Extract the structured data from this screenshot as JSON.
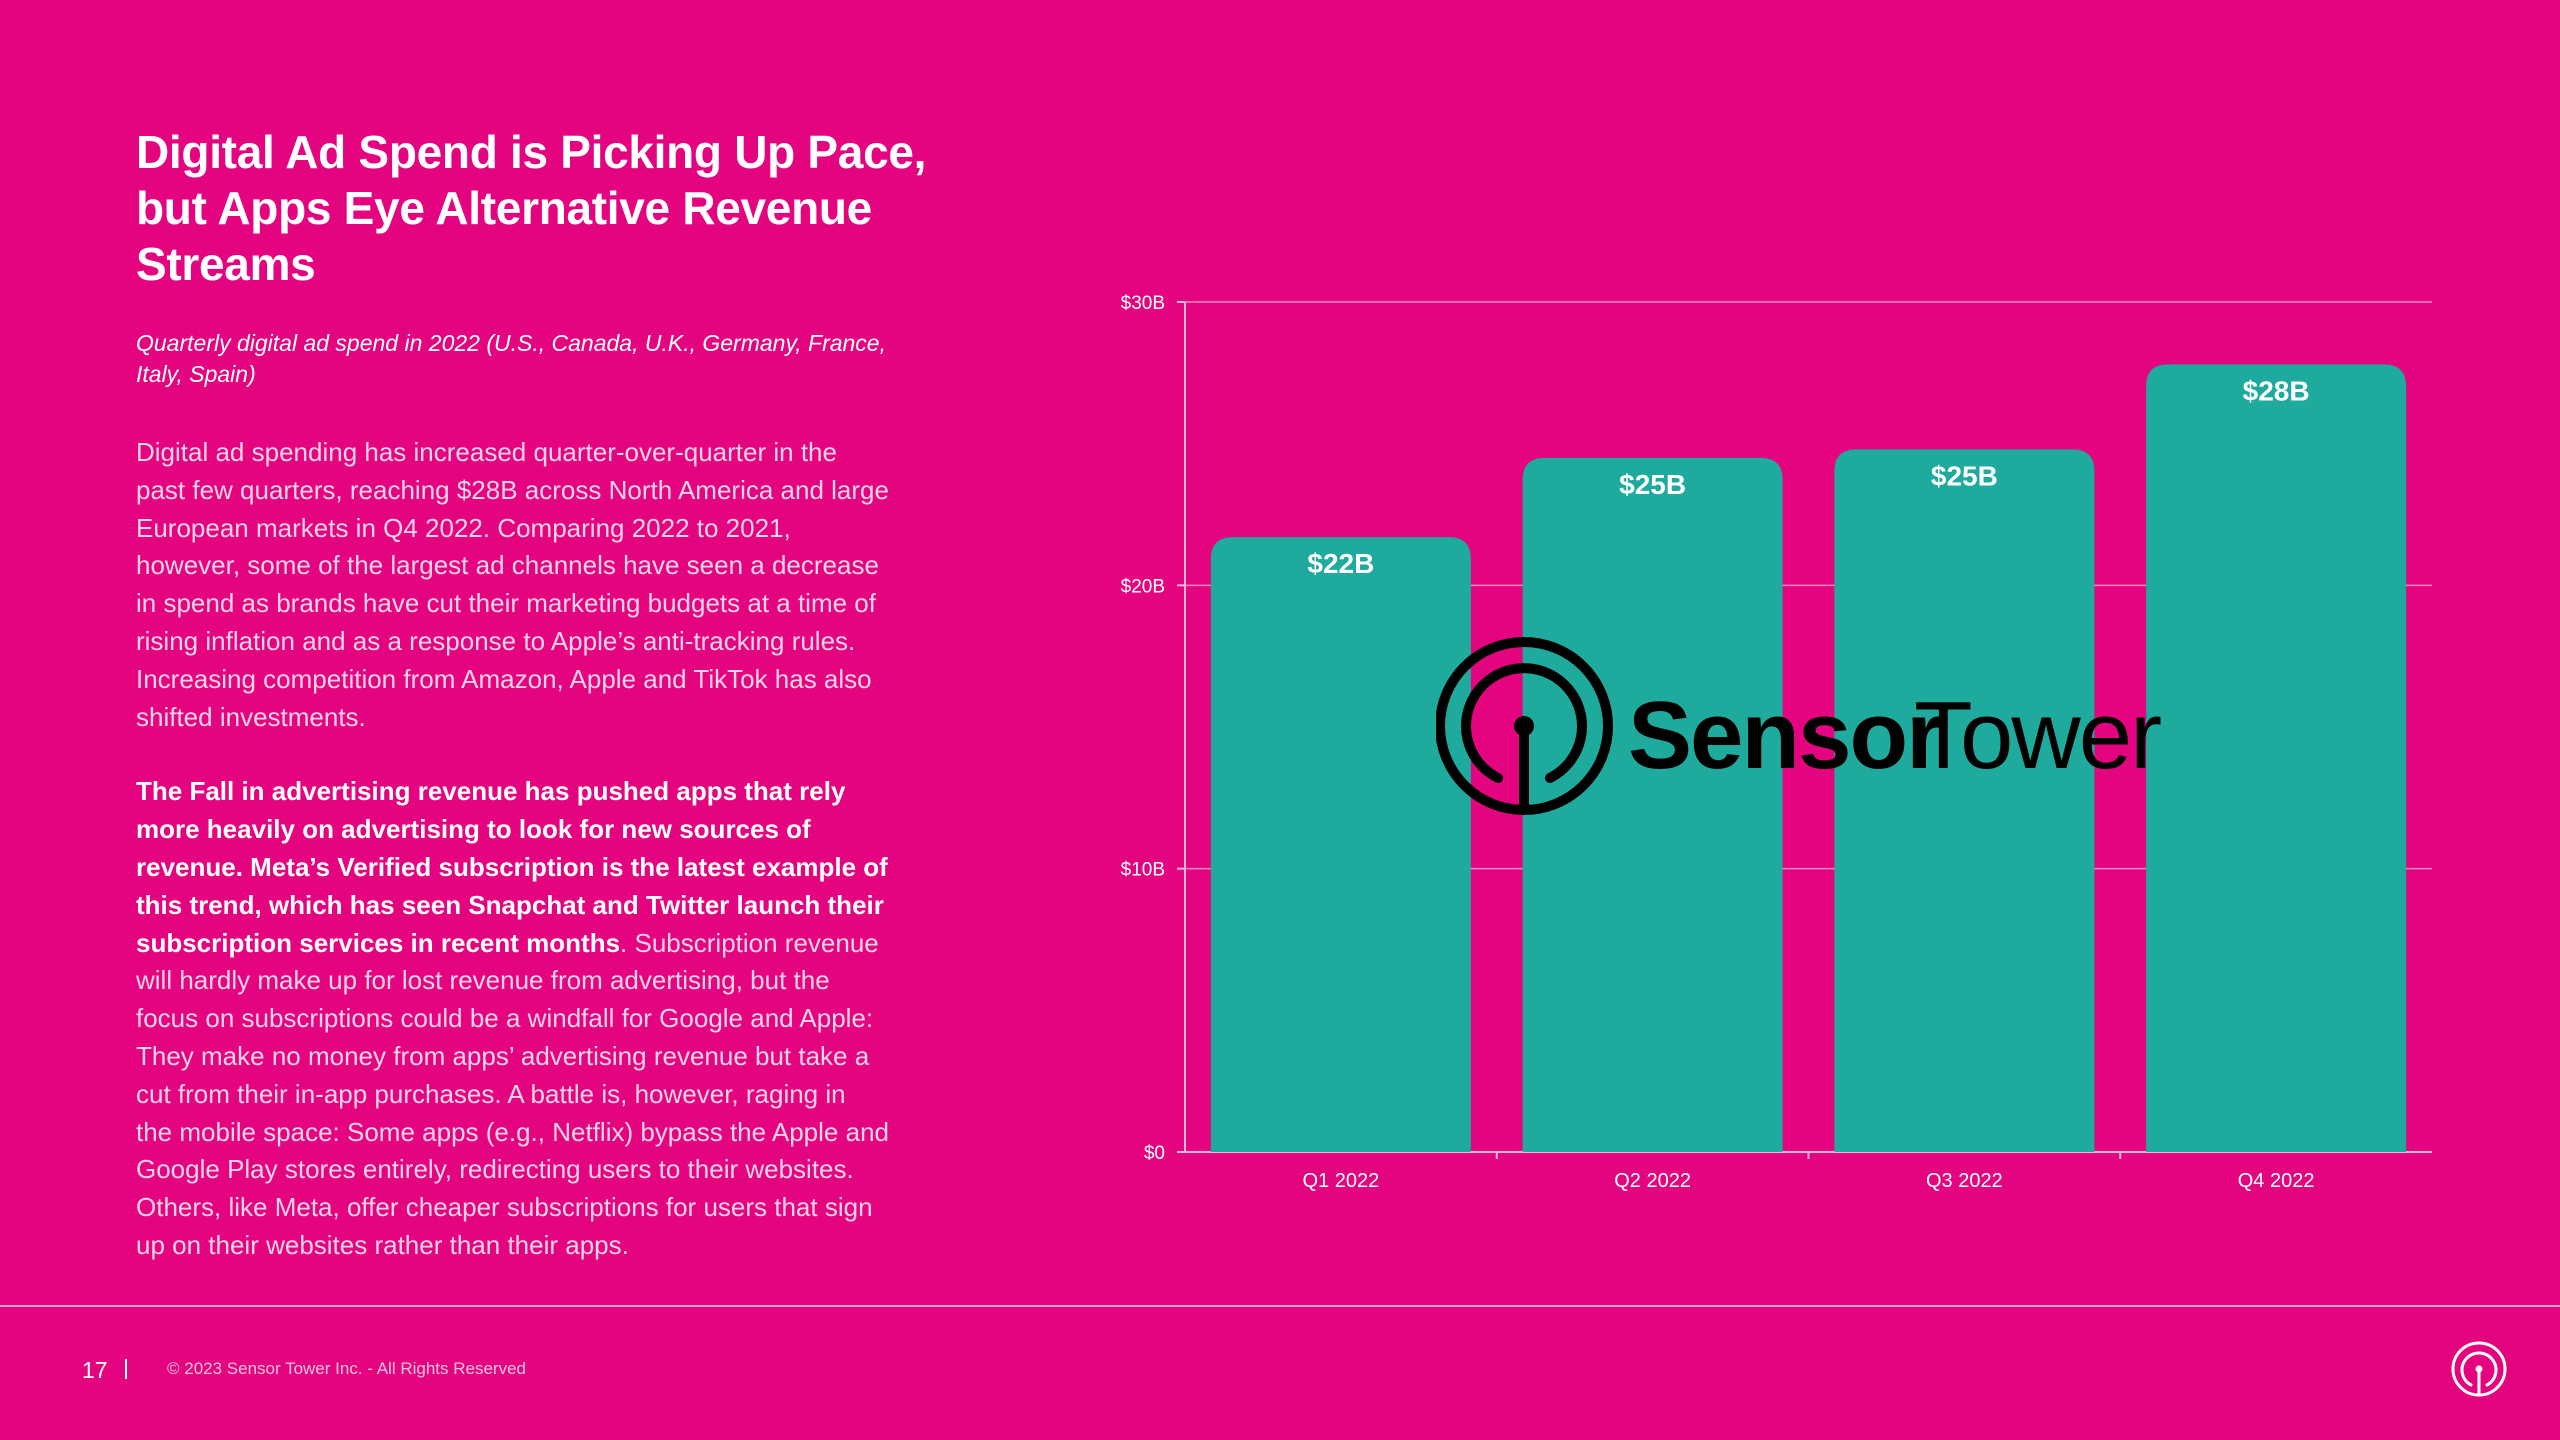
{
  "slide": {
    "title_lines": [
      "Digital Ad Spend is Picking Up Pace,",
      "but Apps Eye Alternative Revenue",
      "Streams"
    ],
    "subtitle_lines": [
      "Quarterly digital ad spend in 2022  (U.S., Canada, U.K., Germany, France,",
      "Italy, Spain)"
    ],
    "paragraph1_lines": [
      "Digital ad spending has increased quarter-over-quarter in the",
      "past few quarters, reaching $28B across North America and large",
      "European markets in Q4 2022. Comparing 2022 to 2021,",
      "however, some of the largest ad channels have seen a decrease",
      "in spend as brands have cut their marketing budgets at a time of",
      "rising inflation and as a response to Apple’s anti-tracking rules.",
      "Increasing competition from Amazon, Apple and TikTok has also",
      "shifted investments."
    ],
    "paragraph2_bold_lines": [
      "The Fall in advertising revenue has pushed apps that rely",
      "more heavily on advertising to look for new sources of",
      "revenue. Meta’s Verified subscription is the latest example of",
      "this trend, which has seen Snapchat and Twitter launch their",
      "subscription services in recent months"
    ],
    "paragraph2_tail": ". Subscription revenue",
    "paragraph2_rest_lines": [
      "will hardly make up for lost revenue from advertising, but the",
      "focus on subscriptions could be a windfall for Google and Apple:",
      "They make no money from apps’ advertising revenue but take a",
      "cut from their in-app purchases. A battle is, however, raging  in",
      "the mobile space: Some apps (e.g., Netflix) bypass the Apple and",
      "Google Play stores entirely, redirecting users to their websites.",
      "Others, like Meta, offer cheaper subscriptions for users that sign",
      "up on their websites rather than their apps."
    ]
  },
  "footer": {
    "page_number": "17",
    "copyright": "© 2023 Sensor Tower Inc. - All Rights Reserved"
  },
  "watermark": {
    "brand_bold": "Sensor",
    "brand_regular": "Tower",
    "icon": "sensor-tower-logo-icon"
  },
  "colors": {
    "background": "#E4047F",
    "bar": "#1FAA9E",
    "gridline": "#F38CBF"
  },
  "chart_data": {
    "type": "bar",
    "categories": [
      "Q1 2022",
      "Q2 2022",
      "Q3 2022",
      "Q4 2022"
    ],
    "values": [
      21.7,
      24.5,
      24.8,
      27.8
    ],
    "value_labels": [
      "$22B",
      "$25B",
      "$25B",
      "$28B"
    ],
    "ylim": [
      0,
      30
    ],
    "yticks": [
      0,
      10,
      20,
      30
    ],
    "ytick_labels": [
      "$0",
      "$10B",
      "$20B",
      "$30B"
    ],
    "grid": true,
    "legend": "none"
  }
}
